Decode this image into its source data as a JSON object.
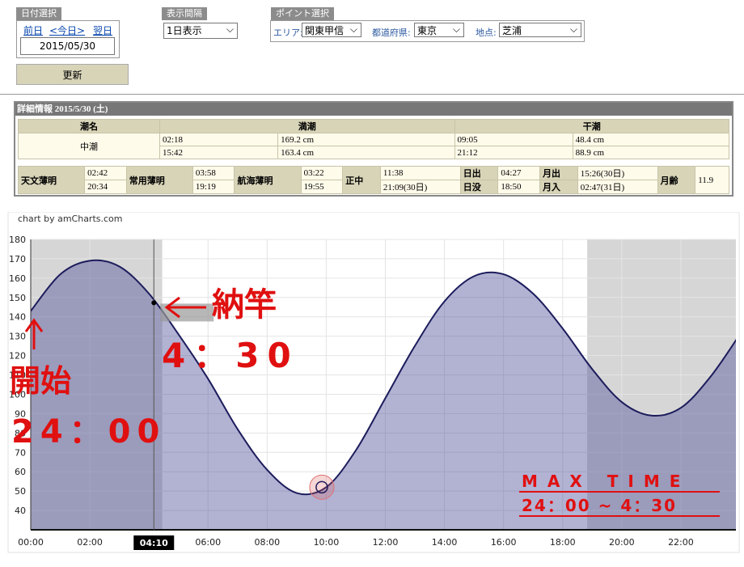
{
  "controls": {
    "date_select": {
      "label": "日付選択",
      "prev": "前日",
      "today": "<今日>",
      "next": "翌日",
      "date": "2015/05/30"
    },
    "interval": {
      "label": "表示間隔",
      "value": "1日表示"
    },
    "point": {
      "label": "ポイント選択",
      "area_label": "エリア:",
      "area": "関東甲信",
      "pref_label": "都道府県:",
      "pref": "東京",
      "place_label": "地点:",
      "place": "芝浦"
    },
    "update": "更新"
  },
  "detail": {
    "title": "詳細情報  2015/5/30 (土)",
    "headers": [
      "潮名",
      "満潮",
      "干潮"
    ],
    "tide_name": "中潮",
    "high": [
      [
        "02:18",
        "169.2 cm"
      ],
      [
        "15:42",
        "163.4 cm"
      ]
    ],
    "low": [
      [
        "09:05",
        "48.4 cm"
      ],
      [
        "21:12",
        "88.9 cm"
      ]
    ],
    "astro": [
      {
        "labels": [
          "天文薄明"
        ],
        "times": [
          "02:42",
          "20:34"
        ]
      },
      {
        "labels": [
          "常用薄明"
        ],
        "times": [
          "03:58",
          "19:19"
        ]
      },
      {
        "labels": [
          "航海薄明"
        ],
        "times": [
          "03:22",
          "19:55"
        ]
      },
      {
        "labels": [
          "正中"
        ],
        "times": [
          "11:38",
          "21:09(30日)"
        ]
      },
      {
        "labels": [
          "日出",
          "日没"
        ],
        "times": [
          "04:27",
          "18:50"
        ]
      },
      {
        "labels": [
          "月出",
          "月入"
        ],
        "times": [
          "15:26(30日)",
          "02:47(31日)"
        ]
      },
      {
        "labels": [
          "月齢"
        ],
        "times": [
          "11.9"
        ]
      }
    ]
  },
  "chart_data": {
    "type": "area",
    "credit": "chart by amCharts.com",
    "x": [
      0,
      1,
      2,
      3,
      4,
      5,
      6,
      7,
      8,
      9,
      10,
      11,
      12,
      13,
      14,
      15,
      16,
      17,
      18,
      19,
      20,
      21,
      22,
      23,
      24
    ],
    "series": [
      {
        "color": "#1c1c5c",
        "values": [
          143,
          162,
          169,
          166,
          152,
          131,
          108,
          82,
          61,
          49,
          52,
          71,
          98,
          125,
          148,
          161,
          162,
          152,
          134,
          113,
          96,
          89,
          93,
          109,
          131
        ]
      }
    ],
    "xlim": [
      0,
      24
    ],
    "ylim": [
      30,
      180
    ],
    "yticks": [
      40,
      50,
      60,
      70,
      80,
      90,
      100,
      110,
      120,
      130,
      140,
      150,
      160,
      170,
      180
    ],
    "xticks": [
      {
        "value": 0,
        "label": "00:00"
      },
      {
        "value": 2,
        "label": "02:00"
      },
      {
        "value": 6,
        "label": "06:00"
      },
      {
        "value": 8,
        "label": "08:00"
      },
      {
        "value": 10,
        "label": "10:00"
      },
      {
        "value": 12,
        "label": "12:00"
      },
      {
        "value": 14,
        "label": "14:00"
      },
      {
        "value": 16,
        "label": "16:00"
      },
      {
        "value": 18,
        "label": "18:00"
      },
      {
        "value": 20,
        "label": "20:00"
      },
      {
        "value": 22,
        "label": "22:00"
      }
    ],
    "night_bands": [
      [
        0,
        4.45
      ],
      [
        18.83,
        24
      ]
    ],
    "cursor": {
      "x": 4.1667,
      "label": "04:10"
    },
    "highlight_point": {
      "x": 9.85,
      "y": 52
    },
    "grid": true,
    "annotations": [
      "納竿",
      "4：30",
      "開始",
      "24：00",
      "MAX TIME",
      "24：00 ~ 4：30"
    ]
  }
}
